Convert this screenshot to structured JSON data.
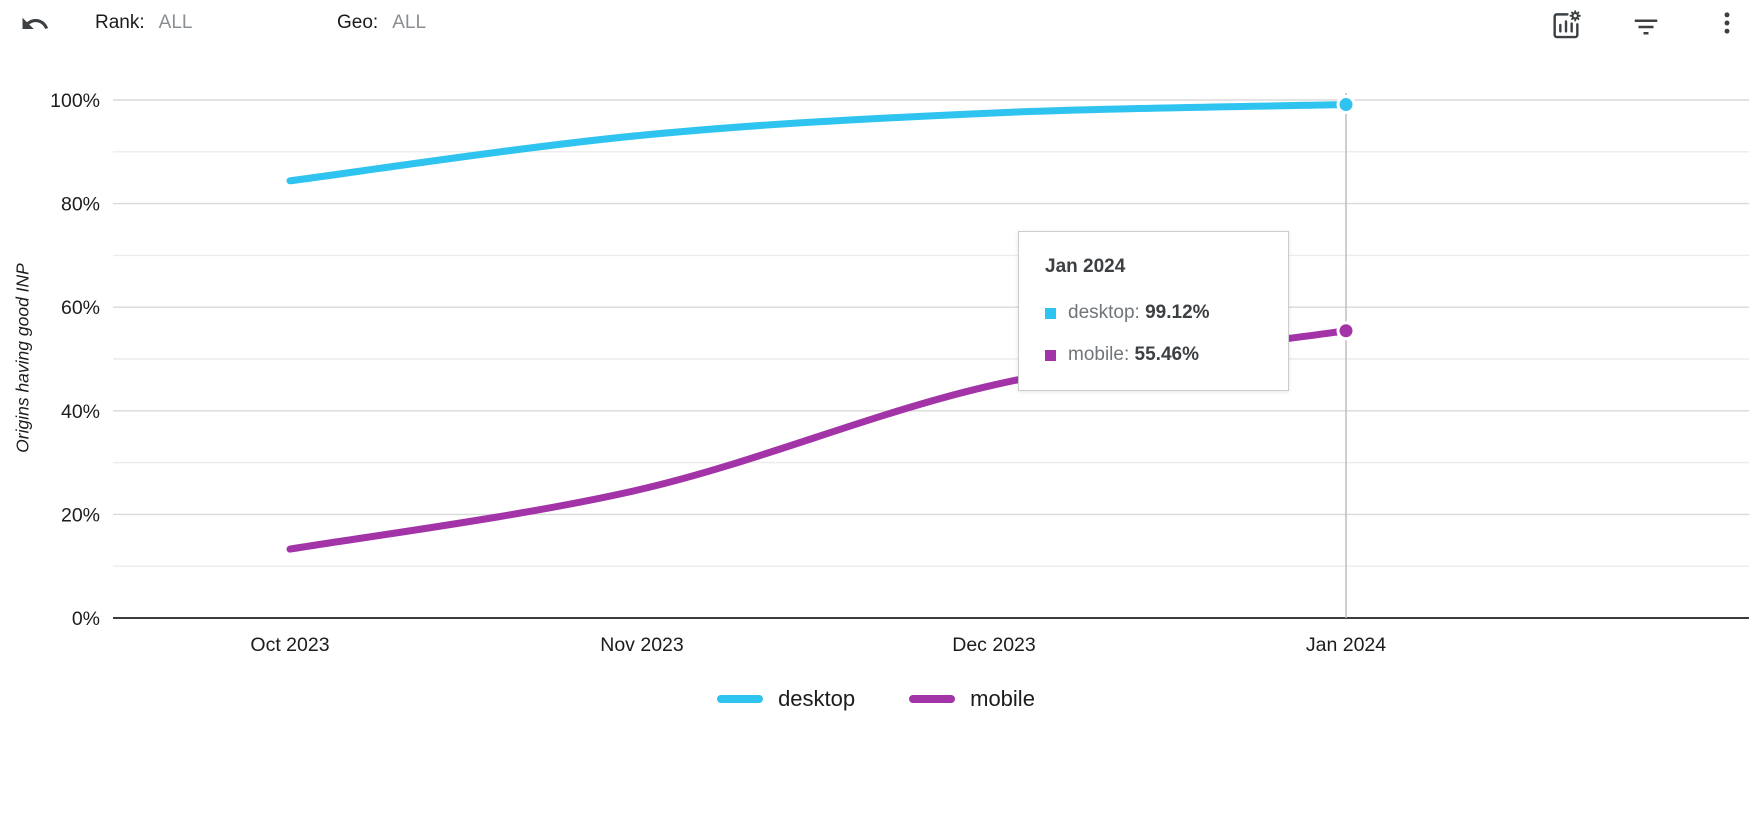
{
  "toolbar": {
    "rank_label": "Rank:",
    "rank_value": "ALL",
    "geo_label": "Geo:",
    "geo_value": "ALL"
  },
  "icons": {
    "undo": "undo-icon",
    "chart_settings": "chart-settings-icon",
    "filter": "filter-icon",
    "more": "kebab-menu-icon"
  },
  "chart_data": {
    "type": "line",
    "x": [
      "Oct 2023",
      "Nov 2023",
      "Dec 2023",
      "Jan 2024"
    ],
    "series": [
      {
        "name": "desktop",
        "color": "#2fc3f0",
        "values": [
          84.4,
          93.2,
          97.5,
          99.12
        ]
      },
      {
        "name": "mobile",
        "color": "#a234a8",
        "values": [
          13.3,
          24.9,
          45.0,
          55.46
        ]
      }
    ],
    "ylabel": "Origins having good INP",
    "xlabel": "",
    "ylim": [
      0,
      100
    ],
    "yticks": [
      "0%",
      "20%",
      "40%",
      "60%",
      "80%",
      "100%"
    ],
    "grid_minor_step": 10,
    "grid": true,
    "legend_position": "bottom",
    "highlighted_x": "Jan 2024"
  },
  "tooltip": {
    "title": "Jan 2024",
    "rows": [
      {
        "label": "desktop:",
        "value": "99.12%"
      },
      {
        "label": "mobile:",
        "value": "55.46%"
      }
    ]
  }
}
